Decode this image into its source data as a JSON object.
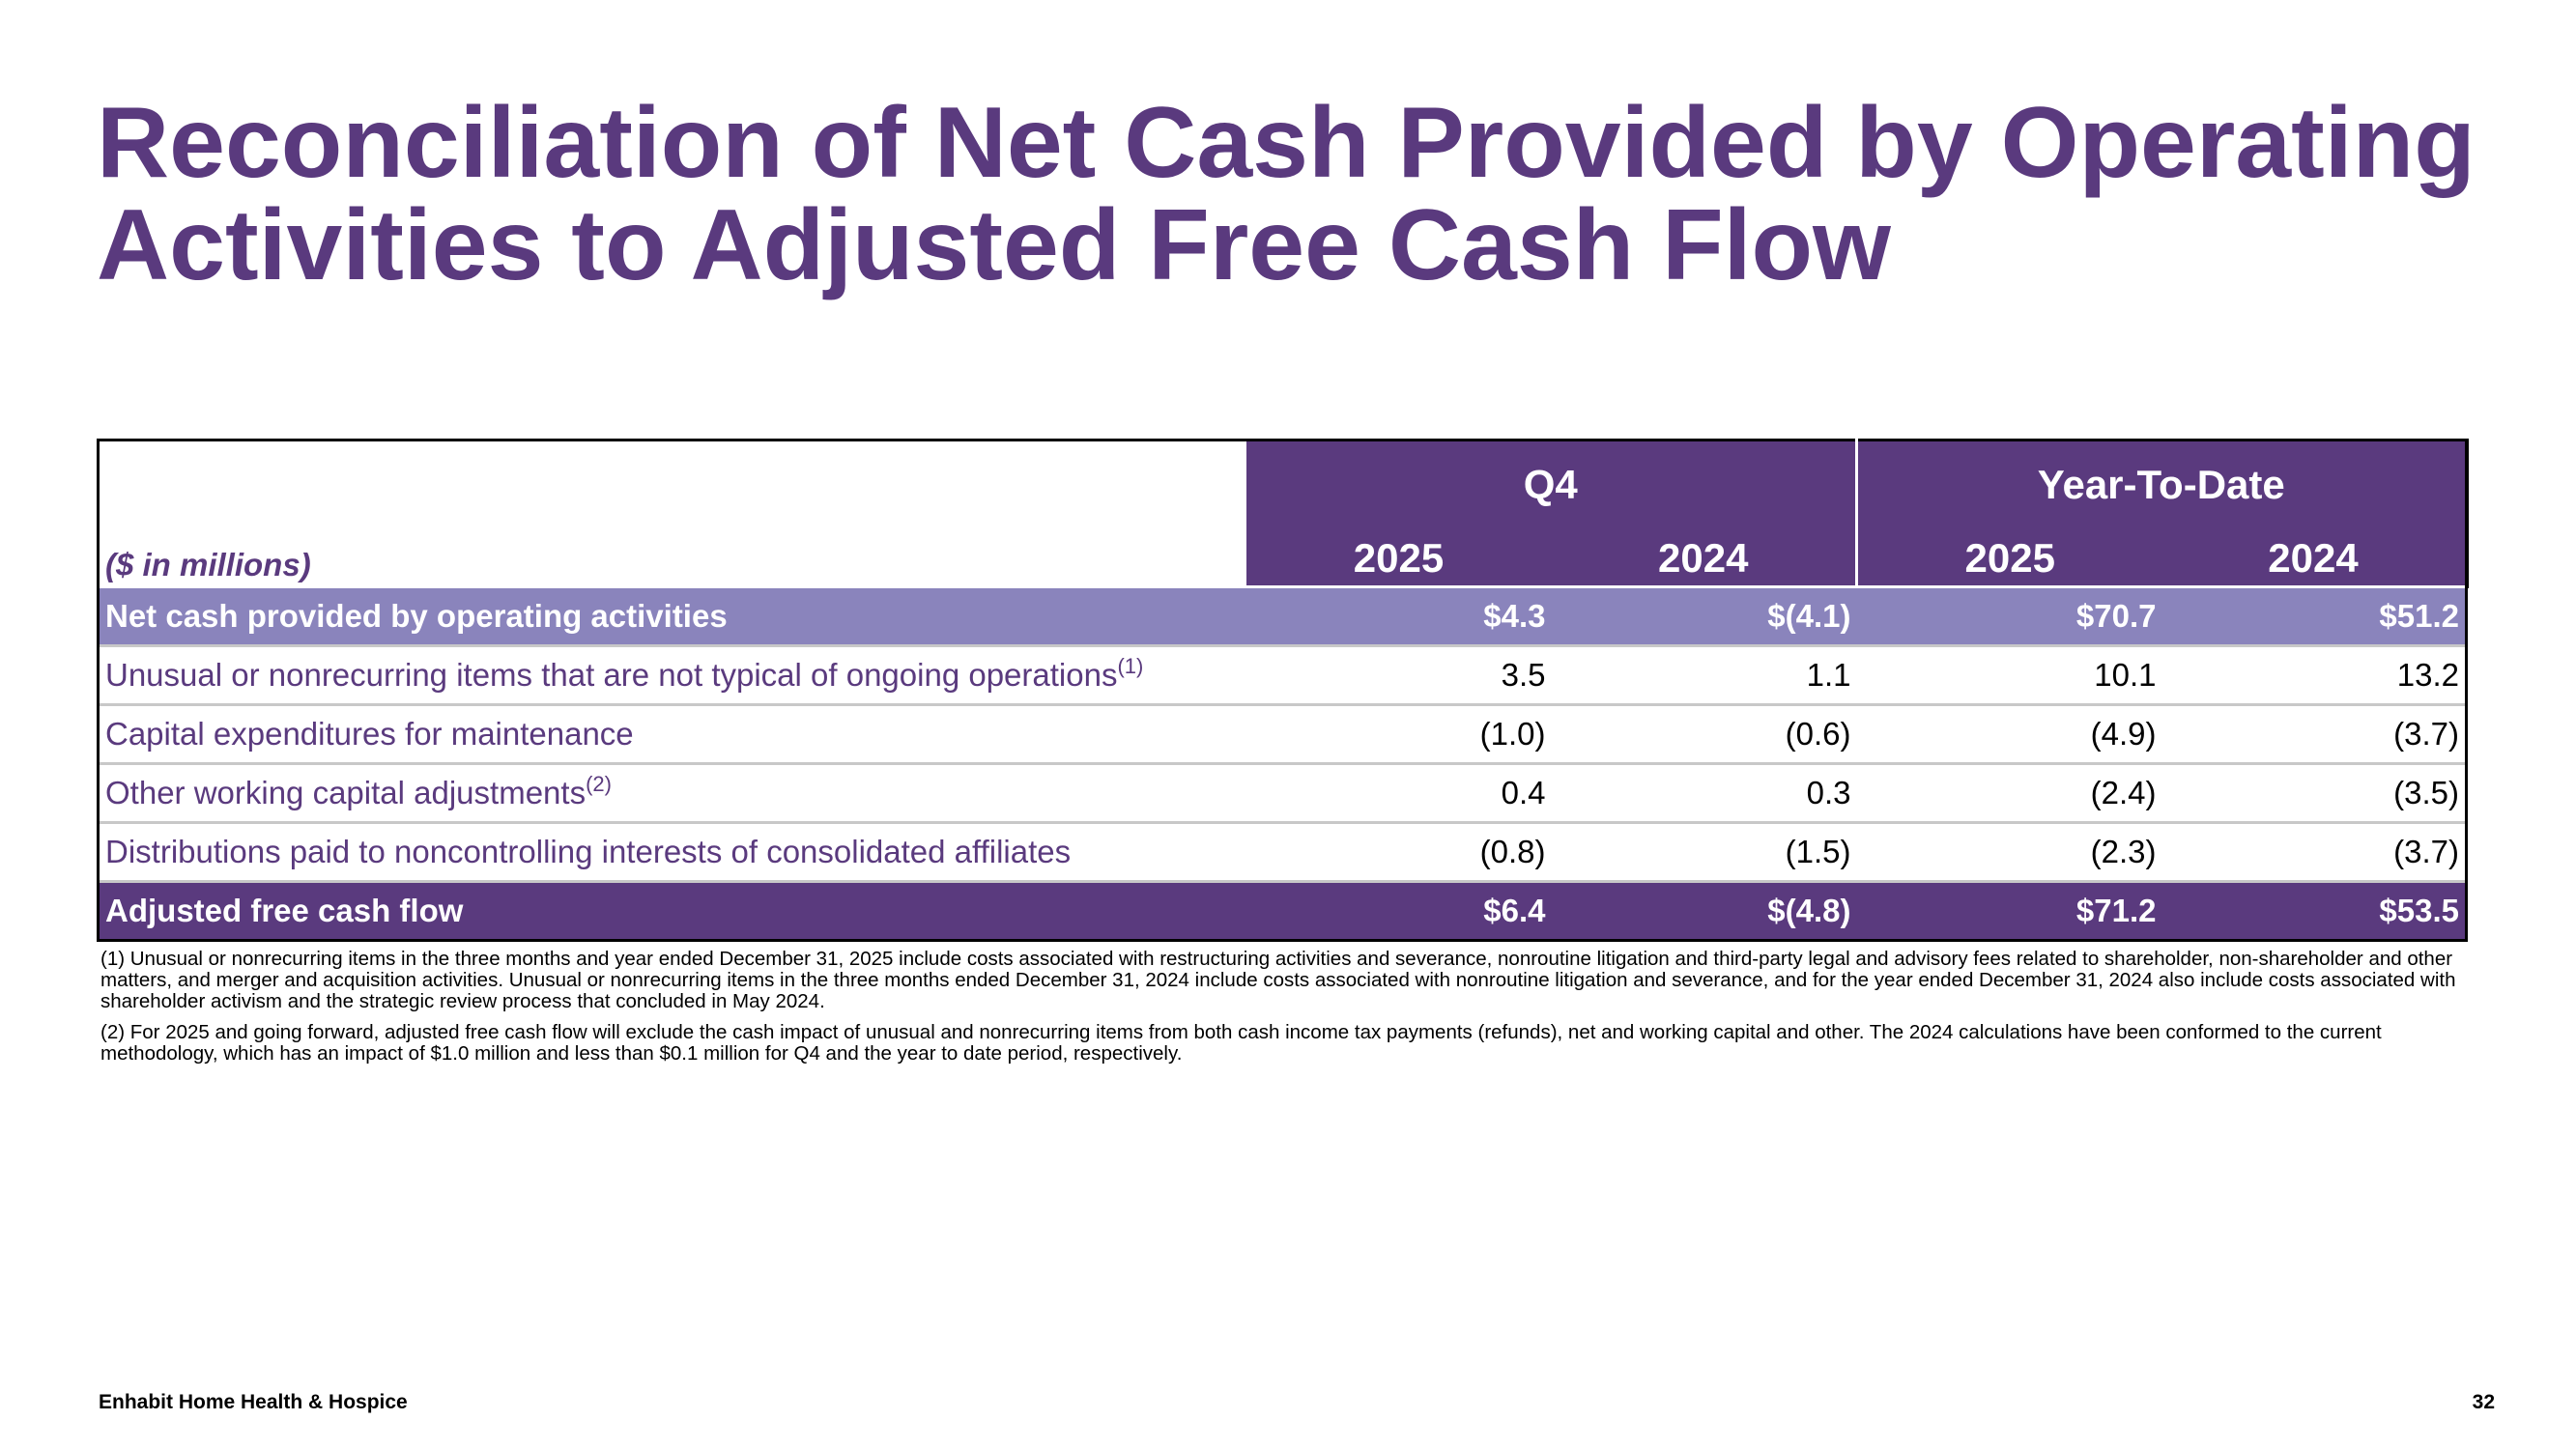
{
  "title": {
    "line1": "Reconciliation of Net Cash Provided by Operating",
    "line2": "Activities to Adjusted Free Cash Flow"
  },
  "table": {
    "units_label": "($ in millions)",
    "groups": [
      "Q4",
      "Year-To-Date"
    ],
    "years": [
      "2025",
      "2024",
      "2025",
      "2024"
    ],
    "rows": [
      {
        "label": "Net cash provided by operating activities",
        "sup": "",
        "values": [
          "$4.3",
          "$(4.1)",
          "$70.7",
          "$51.2"
        ]
      },
      {
        "label": "Unusual or nonrecurring items that are not typical of ongoing operations",
        "sup": "(1)",
        "values": [
          "3.5",
          "1.1",
          "10.1",
          "13.2"
        ]
      },
      {
        "label": "Capital expenditures for maintenance",
        "sup": "",
        "values": [
          "(1.0)",
          "(0.6)",
          "(4.9)",
          "(3.7)"
        ]
      },
      {
        "label": "Other working capital adjustments",
        "sup": "(2)",
        "values": [
          "0.4",
          "0.3",
          "(2.4)",
          "(3.5)"
        ]
      },
      {
        "label": "Distributions paid to noncontrolling interests of consolidated affiliates",
        "sup": "",
        "values": [
          "(0.8)",
          "(1.5)",
          "(2.3)",
          "(3.7)"
        ]
      },
      {
        "label": "Adjusted free cash flow",
        "sup": "",
        "values": [
          "$6.4",
          "$(4.8)",
          "$71.2",
          "$53.5"
        ]
      }
    ]
  },
  "footnotes": [
    "(1) Unusual or nonrecurring items in the three months and year ended December 31, 2025 include costs associated with restructuring activities and severance, nonroutine litigation and third-party legal and advisory fees related to shareholder, non-shareholder and other matters, and merger and acquisition activities. Unusual or nonrecurring items in the three months ended December 31, 2024 include costs associated with nonroutine litigation and severance, and for the year ended December 31, 2024 also include costs associated with shareholder activism and the strategic review process that concluded in May 2024.",
    "(2) For 2025 and going forward, adjusted free cash flow will exclude the cash impact of unusual and nonrecurring items from both cash income tax payments (refunds), net and working capital and other. The 2024 calculations have been conformed to the current methodology, which has an impact of $1.0 million and less than $0.1 million for Q4 and the year to date period, respectively."
  ],
  "footer": {
    "company": "Enhabit Home Health & Hospice",
    "page_number": "32"
  },
  "colors": {
    "brand_purple": "#5a3a7e",
    "band_lavender": "#8a84bc"
  }
}
